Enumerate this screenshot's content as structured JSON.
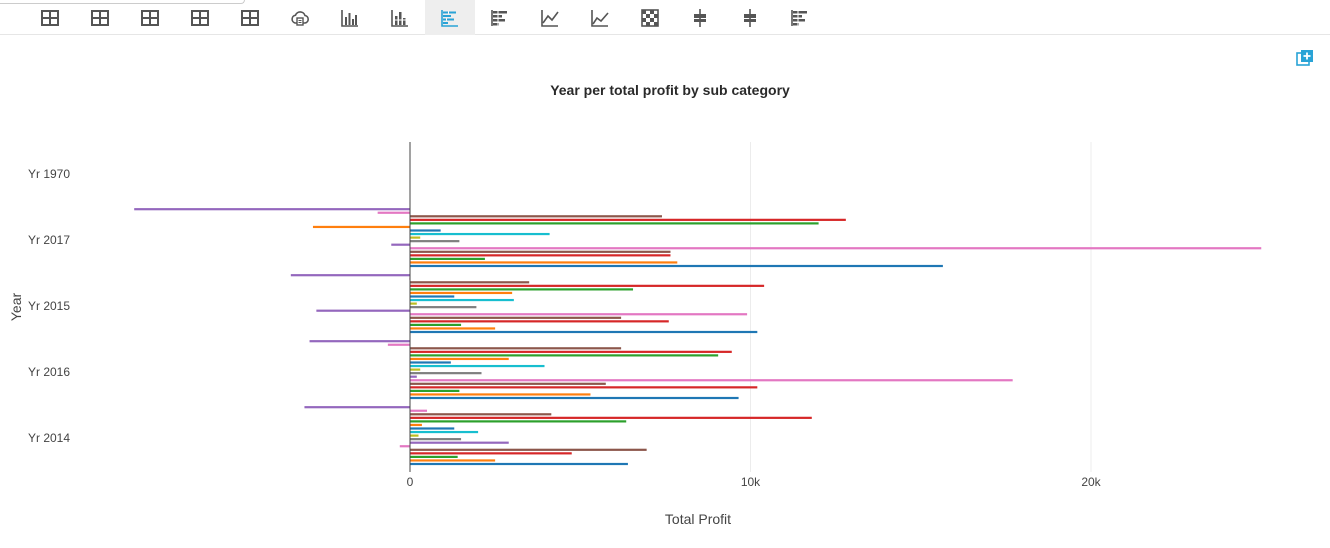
{
  "toolbar": {
    "buttons": [
      {
        "icon": "table-icon"
      },
      {
        "icon": "table-icon"
      },
      {
        "icon": "table-icon"
      },
      {
        "icon": "table-icon"
      },
      {
        "icon": "table-icon"
      },
      {
        "icon": "cloud-icon"
      },
      {
        "icon": "vertical-bar-icon"
      },
      {
        "icon": "stacked-bar-icon"
      },
      {
        "icon": "horizontal-bar-icon",
        "active": true
      },
      {
        "icon": "stacked-horizontal-bar-icon"
      },
      {
        "icon": "line-chart-icon"
      },
      {
        "icon": "area-chart-icon"
      },
      {
        "icon": "heatmap-icon"
      },
      {
        "icon": "boxplot-icon"
      },
      {
        "icon": "boxplot-icon"
      },
      {
        "icon": "stacked-horizontal-bar-icon"
      }
    ],
    "accent_color": "#29a3d6"
  },
  "export_icon": "add-to-dashboard-icon",
  "chart_data": {
    "type": "bar",
    "orientation": "horizontal",
    "title": "Year per total profit by sub category",
    "xlabel": "Total Profit",
    "ylabel": "Year",
    "categories": [
      "Yr 2014",
      "Yr 2016",
      "Yr 2015",
      "Yr 2017",
      "Yr 1970"
    ],
    "x_ticks": [
      {
        "value": 0,
        "label": "0"
      },
      {
        "value": 10000,
        "label": "10k"
      },
      {
        "value": 20000,
        "label": "20k"
      }
    ],
    "xlim": [
      -8200,
      27000
    ],
    "grid": true,
    "colors": [
      "#1f77b4",
      "#ff7f0e",
      "#2ca02c",
      "#d62728",
      "#8c564b",
      "#e377c2",
      "#9467bd",
      "#7f7f7f",
      "#bcbd22",
      "#17becf",
      "#1f77b4",
      "#ff7f0e",
      "#2ca02c",
      "#d62728",
      "#8c564b",
      "#e377c2",
      "#9467bd",
      "#7f7f7f"
    ],
    "values_by_category": [
      [
        6400,
        2500,
        1400,
        4750,
        6950,
        -300,
        2900,
        1500,
        250,
        2000,
        1300,
        350,
        6350,
        11800,
        4150,
        500,
        -3100,
        0
      ],
      [
        9650,
        5300,
        1450,
        10200,
        5750,
        17700,
        200,
        2100,
        300,
        3950,
        1200,
        2900,
        9050,
        9450,
        6200,
        -650,
        -2950,
        0
      ],
      [
        10200,
        2500,
        1500,
        7600,
        6200,
        9900,
        -2750,
        1950,
        200,
        3050,
        1300,
        3000,
        6550,
        10400,
        3500,
        -20,
        -3500,
        0
      ],
      [
        15650,
        7850,
        2200,
        7650,
        7650,
        25000,
        -550,
        1450,
        300,
        4100,
        900,
        -2850,
        12000,
        12800,
        7400,
        -950,
        -8100,
        0
      ],
      [
        0,
        0,
        0,
        0,
        0,
        0,
        0,
        0,
        0,
        0,
        0,
        0,
        0,
        0,
        0,
        0,
        0,
        0
      ]
    ]
  }
}
